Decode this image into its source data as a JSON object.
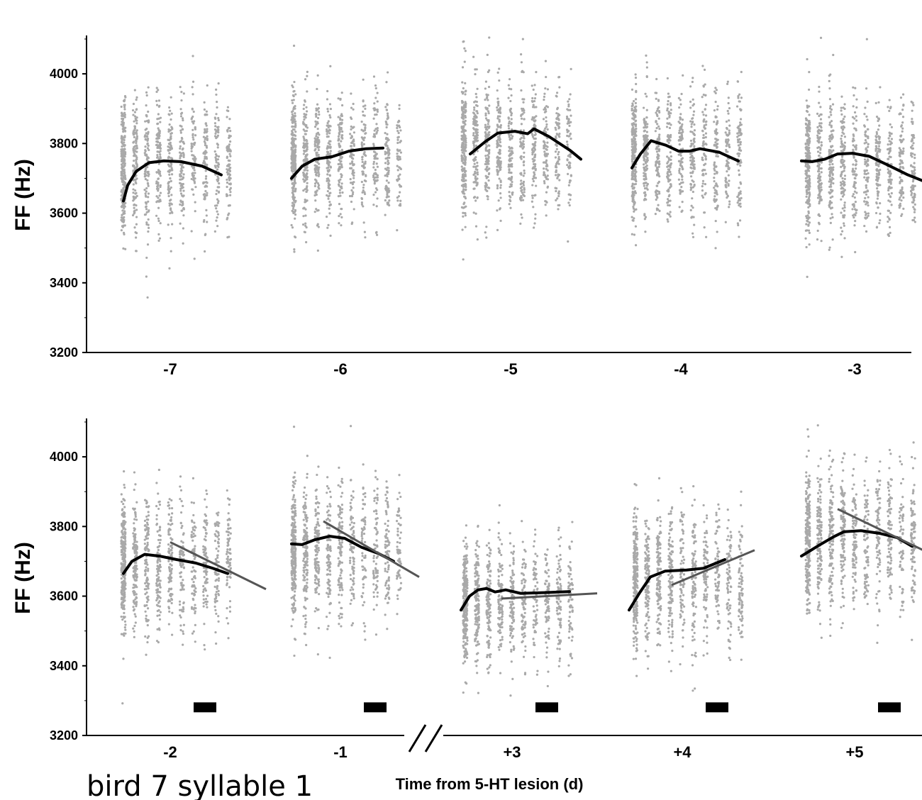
{
  "chart_data": [
    {
      "type": "scatter",
      "panel": "top",
      "ylabel": "FF (Hz)",
      "ylim": [
        3200,
        4100
      ],
      "yticks": [
        3200,
        3400,
        3600,
        3800,
        4000
      ],
      "ytick_labels": [
        "3200",
        "3400",
        "3600",
        "3800",
        "4000"
      ],
      "categories": [
        "-7",
        "-6",
        "-5",
        "-4",
        "-3"
      ],
      "x_domain": [
        -7.5,
        -2.5
      ],
      "days": [
        {
          "day": -7,
          "smooth": [
            [
              -0.22,
              3635
            ],
            [
              -0.2,
              3680
            ],
            [
              -0.16,
              3720
            ],
            [
              -0.1,
              3745
            ],
            [
              -0.03,
              3750
            ],
            [
              0.05,
              3748
            ],
            [
              0.15,
              3735
            ],
            [
              0.24,
              3710
            ]
          ],
          "center": 3740,
          "spread": 95
        },
        {
          "day": -6,
          "smooth": [
            [
              -0.23,
              3700
            ],
            [
              -0.18,
              3735
            ],
            [
              -0.12,
              3755
            ],
            [
              -0.04,
              3762
            ],
            [
              0.04,
              3778
            ],
            [
              0.12,
              3785
            ],
            [
              0.2,
              3787
            ]
          ],
          "center": 3760,
          "spread": 90
        },
        {
          "day": -5,
          "smooth": [
            [
              -0.19,
              3770
            ],
            [
              -0.12,
              3805
            ],
            [
              -0.06,
              3830
            ],
            [
              0.02,
              3835
            ],
            [
              0.08,
              3828
            ],
            [
              0.11,
              3842
            ],
            [
              0.18,
              3820
            ],
            [
              0.28,
              3780
            ],
            [
              0.33,
              3755
            ]
          ],
          "center": 3790,
          "spread": 95
        },
        {
          "day": -4,
          "smooth": [
            [
              -0.23,
              3730
            ],
            [
              -0.19,
              3770
            ],
            [
              -0.14,
              3808
            ],
            [
              -0.07,
              3795
            ],
            [
              -0.01,
              3778
            ],
            [
              0.04,
              3778
            ],
            [
              0.09,
              3785
            ],
            [
              0.18,
              3775
            ],
            [
              0.27,
              3750
            ]
          ],
          "center": 3770,
          "spread": 90
        },
        {
          "day": -3,
          "smooth": [
            [
              -0.25,
              3750
            ],
            [
              -0.2,
              3748
            ],
            [
              -0.14,
              3755
            ],
            [
              -0.08,
              3770
            ],
            [
              -0.01,
              3772
            ],
            [
              0.07,
              3763
            ],
            [
              0.15,
              3740
            ],
            [
              0.25,
              3710
            ],
            [
              0.32,
              3693
            ]
          ],
          "center": 3740,
          "spread": 95
        }
      ]
    },
    {
      "type": "scatter",
      "panel": "bottom",
      "ylabel": "FF (Hz)",
      "xlabel": "Time from 5-HT lesion (d)",
      "ylim": [
        3200,
        4100
      ],
      "yticks": [
        3200,
        3400,
        3600,
        3800,
        4000
      ],
      "ytick_labels": [
        "3200",
        "3400",
        "3600",
        "3800",
        "4000"
      ],
      "categories": [
        "-2",
        "-1",
        "+3",
        "+4",
        "+5"
      ],
      "axis_break_between": [
        "-1",
        "+3"
      ],
      "days": [
        {
          "day": "-2",
          "smooth": [
            [
              -0.22,
              3665
            ],
            [
              -0.18,
              3700
            ],
            [
              -0.12,
              3720
            ],
            [
              -0.05,
              3715
            ],
            [
              0.03,
              3705
            ],
            [
              0.12,
              3695
            ],
            [
              0.2,
              3680
            ],
            [
              0.27,
              3665
            ]
          ],
          "fit": [
            [
              0.0,
              3755
            ],
            [
              0.45,
              3620
            ]
          ],
          "center": 3690,
          "spread": 95
        },
        {
          "day": "-1",
          "smooth": [
            [
              -0.23,
              3750
            ],
            [
              -0.18,
              3748
            ],
            [
              -0.12,
              3762
            ],
            [
              -0.05,
              3772
            ],
            [
              0.02,
              3766
            ],
            [
              0.1,
              3740
            ],
            [
              0.18,
              3722
            ],
            [
              0.25,
              3700
            ]
          ],
          "fit": [
            [
              -0.08,
              3815
            ],
            [
              0.37,
              3655
            ]
          ],
          "center": 3730,
          "spread": 100
        },
        {
          "day": "+3",
          "smooth": [
            [
              -0.24,
              3560
            ],
            [
              -0.2,
              3600
            ],
            [
              -0.16,
              3618
            ],
            [
              -0.12,
              3622
            ],
            [
              -0.08,
              3612
            ],
            [
              -0.03,
              3618
            ],
            [
              0.04,
              3608
            ],
            [
              0.15,
              3610
            ],
            [
              0.27,
              3613
            ]
          ],
          "fit": [
            [
              -0.05,
              3593
            ],
            [
              0.4,
              3608
            ]
          ],
          "center": 3580,
          "spread": 85
        },
        {
          "day": "+4",
          "smooth": [
            [
              -0.25,
              3560
            ],
            [
              -0.2,
              3610
            ],
            [
              -0.15,
              3655
            ],
            [
              -0.08,
              3672
            ],
            [
              0.02,
              3675
            ],
            [
              0.1,
              3680
            ],
            [
              0.2,
              3705
            ]
          ],
          "fit": [
            [
              -0.05,
              3632
            ],
            [
              0.34,
              3732
            ]
          ],
          "center": 3650,
          "spread": 95
        },
        {
          "day": "+5",
          "smooth": [
            [
              -0.25,
              3715
            ],
            [
              -0.17,
              3745
            ],
            [
              -0.1,
              3770
            ],
            [
              -0.05,
              3785
            ],
            [
              0.03,
              3788
            ],
            [
              0.12,
              3780
            ],
            [
              0.2,
              3768
            ],
            [
              0.27,
              3743
            ]
          ],
          "fit": [
            [
              -0.08,
              3850
            ],
            [
              0.38,
              3715
            ]
          ],
          "center": 3760,
          "spread": 100
        }
      ]
    }
  ],
  "caption": "bird 7 syllable 1"
}
